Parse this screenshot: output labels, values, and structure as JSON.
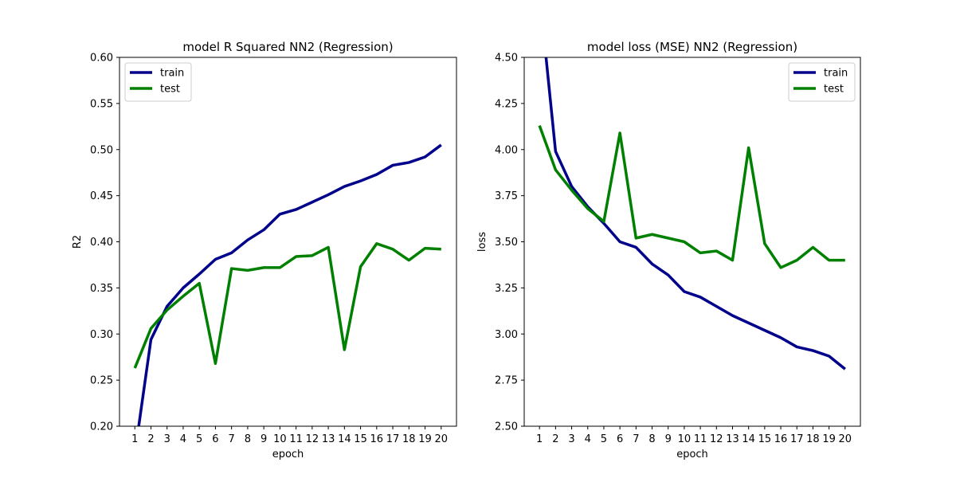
{
  "figure": {
    "colors": {
      "train": "#00008b",
      "test": "#008000"
    }
  },
  "chart_data": [
    {
      "type": "line",
      "title": "model R Squared NN2 (Regression)",
      "xlabel": "epoch",
      "ylabel": "R2",
      "x": [
        1,
        2,
        3,
        4,
        5,
        6,
        7,
        8,
        9,
        10,
        11,
        12,
        13,
        14,
        15,
        16,
        17,
        18,
        19,
        20
      ],
      "xticks": [
        "1",
        "2",
        "3",
        "4",
        "5",
        "6",
        "7",
        "8",
        "9",
        "10",
        "11",
        "12",
        "13",
        "14",
        "15",
        "16",
        "17",
        "18",
        "19",
        "20"
      ],
      "ylim": [
        0.2,
        0.6
      ],
      "yticks": [
        "0.20",
        "0.25",
        "0.30",
        "0.35",
        "0.40",
        "0.45",
        "0.50",
        "0.55",
        "0.60"
      ],
      "legend_position": "upper-left",
      "series": [
        {
          "name": "train",
          "color": "#00008b",
          "values": [
            0.17,
            0.294,
            0.33,
            0.35,
            0.365,
            0.381,
            0.388,
            0.402,
            0.413,
            0.43,
            0.435,
            0.443,
            0.451,
            0.46,
            0.466,
            0.473,
            0.483,
            0.486,
            0.492,
            0.505
          ]
        },
        {
          "name": "test",
          "color": "#008000",
          "values": [
            0.263,
            0.306,
            0.326,
            0.341,
            0.355,
            0.268,
            0.371,
            0.369,
            0.372,
            0.372,
            0.384,
            0.385,
            0.394,
            0.283,
            0.373,
            0.398,
            0.392,
            0.38,
            0.393,
            0.392
          ]
        }
      ]
    },
    {
      "type": "line",
      "title": "model loss (MSE) NN2 (Regression)",
      "xlabel": "epoch",
      "ylabel": "loss",
      "x": [
        1,
        2,
        3,
        4,
        5,
        6,
        7,
        8,
        9,
        10,
        11,
        12,
        13,
        14,
        15,
        16,
        17,
        18,
        19,
        20
      ],
      "xticks": [
        "1",
        "2",
        "3",
        "4",
        "5",
        "6",
        "7",
        "8",
        "9",
        "10",
        "11",
        "12",
        "13",
        "14",
        "15",
        "16",
        "17",
        "18",
        "19",
        "20"
      ],
      "ylim": [
        2.5,
        4.5
      ],
      "yticks": [
        "2.50",
        "2.75",
        "3.00",
        "3.25",
        "3.50",
        "3.75",
        "4.00",
        "4.25",
        "4.50"
      ],
      "legend_position": "upper-right",
      "series": [
        {
          "name": "train",
          "color": "#00008b",
          "values": [
            4.85,
            3.99,
            3.8,
            3.69,
            3.6,
            3.5,
            3.47,
            3.38,
            3.32,
            3.23,
            3.2,
            3.15,
            3.1,
            3.06,
            3.02,
            2.98,
            2.93,
            2.91,
            2.88,
            2.81
          ]
        },
        {
          "name": "test",
          "color": "#008000",
          "values": [
            4.13,
            3.89,
            3.78,
            3.68,
            3.61,
            4.09,
            3.52,
            3.54,
            3.52,
            3.5,
            3.44,
            3.45,
            3.4,
            4.01,
            3.49,
            3.36,
            3.4,
            3.47,
            3.4,
            3.4
          ]
        }
      ]
    }
  ]
}
